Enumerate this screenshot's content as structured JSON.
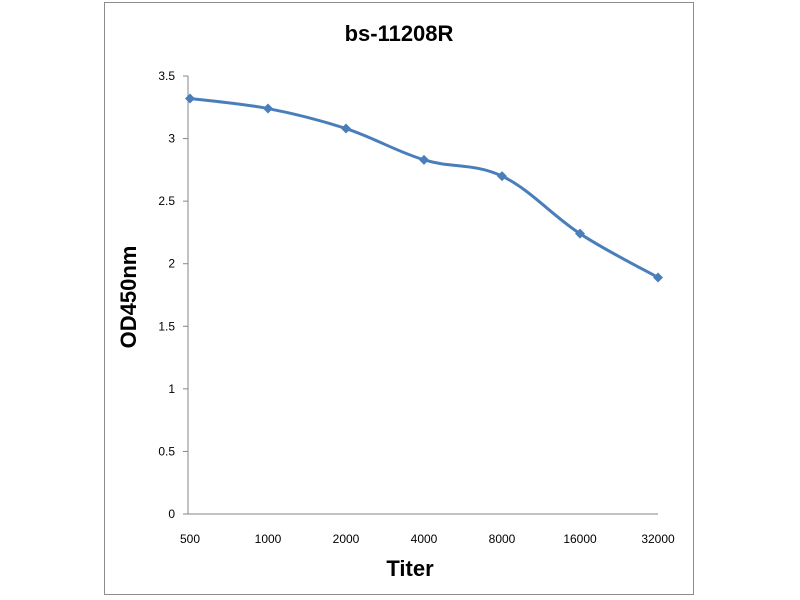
{
  "chart_data": {
    "type": "line",
    "title": "bs-11208R",
    "xlabel": "Titer",
    "ylabel": "OD450nm",
    "categories": [
      "500",
      "1000",
      "2000",
      "4000",
      "8000",
      "16000",
      "32000"
    ],
    "series": [
      {
        "values": [
          3.32,
          3.24,
          3.08,
          2.83,
          2.7,
          2.24,
          1.89
        ],
        "color": "#4a7ebb",
        "marker": "diamond"
      }
    ],
    "ylim": [
      0,
      3.5
    ],
    "y_ticks": [
      0,
      0.5,
      1,
      1.5,
      2,
      2.5,
      3,
      3.5
    ],
    "y_tick_labels": [
      "0",
      "0.5",
      "1",
      "1.5",
      "2",
      "2.5",
      "3",
      "3.5"
    ],
    "grid": false,
    "legend": "none",
    "smoothed": true
  }
}
